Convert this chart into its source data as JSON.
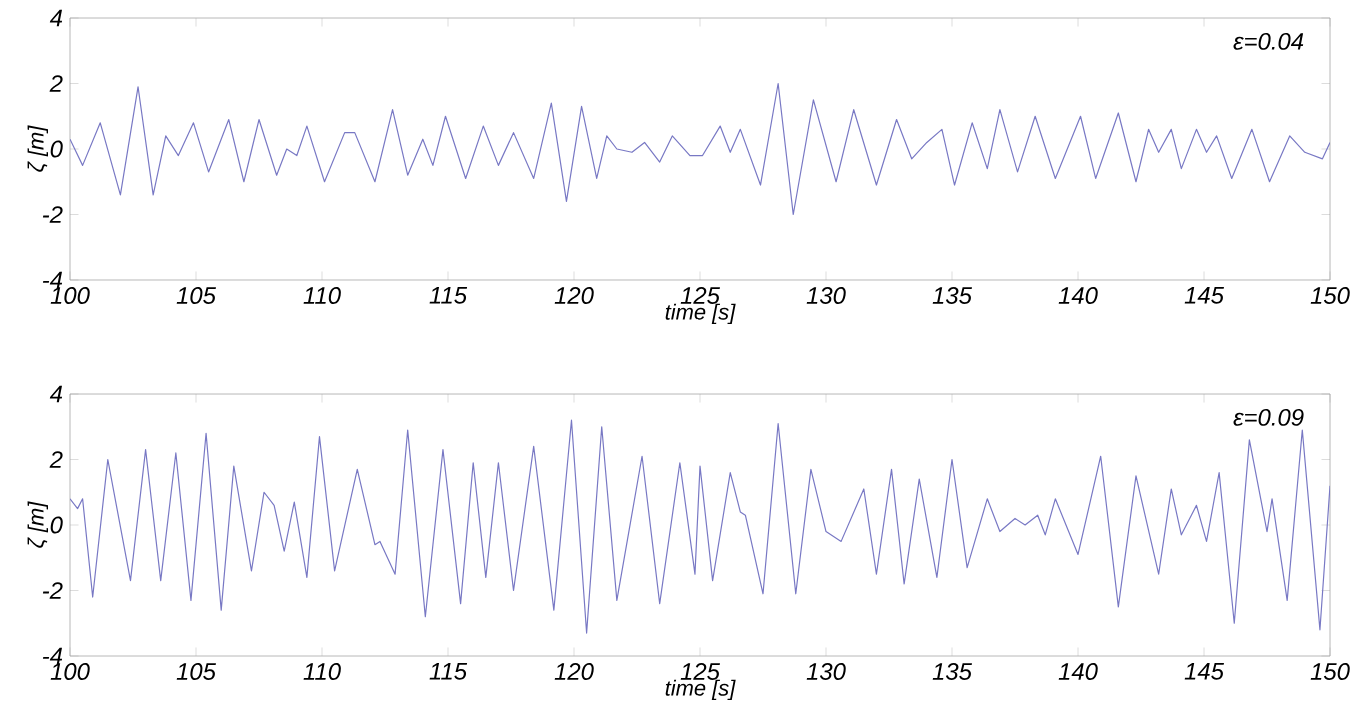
{
  "chart_data": [
    {
      "type": "line",
      "xlabel": "time [s]",
      "ylabel": "ζ [m]",
      "annotations": [
        "ε=0.04"
      ],
      "color": "#7878c4",
      "xlim": [
        100,
        150
      ],
      "ylim": [
        -4,
        4
      ],
      "xticks": [
        100,
        105,
        110,
        115,
        120,
        125,
        130,
        135,
        140,
        145,
        150
      ],
      "yticks": [
        -4,
        -2,
        0,
        2,
        4
      ],
      "x": [
        100,
        100.5,
        101.2,
        102.0,
        102.7,
        103.3,
        103.8,
        104.3,
        104.9,
        105.5,
        106.3,
        106.9,
        107.5,
        108.2,
        108.6,
        109.0,
        109.4,
        110.1,
        110.9,
        111.3,
        112.1,
        112.8,
        113.4,
        114.0,
        114.4,
        114.9,
        115.7,
        116.4,
        117.0,
        117.6,
        118.4,
        119.1,
        119.7,
        120.3,
        120.9,
        121.3,
        121.7,
        122.3,
        122.8,
        123.4,
        123.9,
        124.6,
        125.1,
        125.8,
        126.2,
        126.6,
        127.4,
        128.1,
        128.7,
        129.5,
        130.4,
        131.1,
        132.0,
        132.8,
        133.4,
        134.0,
        134.6,
        135.1,
        135.8,
        136.4,
        136.9,
        137.6,
        138.3,
        139.1,
        140.1,
        140.7,
        141.6,
        142.3,
        142.8,
        143.2,
        143.7,
        144.1,
        144.7,
        145.1,
        145.5,
        146.1,
        146.9,
        147.6,
        148.4,
        149.0,
        149.7,
        150
      ],
      "values": [
        0.3,
        -0.5,
        0.8,
        -1.4,
        1.9,
        -1.4,
        0.4,
        -0.2,
        0.8,
        -0.7,
        0.9,
        -1.0,
        0.9,
        -0.8,
        0.0,
        -0.2,
        0.7,
        -1.0,
        0.5,
        0.5,
        -1.0,
        1.2,
        -0.8,
        0.3,
        -0.5,
        1.0,
        -0.9,
        0.7,
        -0.5,
        0.5,
        -0.9,
        1.4,
        -1.6,
        1.3,
        -0.9,
        0.4,
        0.0,
        -0.1,
        0.2,
        -0.4,
        0.4,
        -0.2,
        -0.2,
        0.7,
        -0.1,
        0.6,
        -1.1,
        2.0,
        -2.0,
        1.5,
        -1.0,
        1.2,
        -1.1,
        0.9,
        -0.3,
        0.2,
        0.6,
        -1.1,
        0.8,
        -0.6,
        1.2,
        -0.7,
        1.0,
        -0.9,
        1.0,
        -0.9,
        1.1,
        -1.0,
        0.6,
        -0.1,
        0.6,
        -0.6,
        0.6,
        -0.1,
        0.4,
        -0.9,
        0.6,
        -1.0,
        0.4,
        -0.1,
        -0.3,
        0.2
      ]
    },
    {
      "type": "line",
      "xlabel": "time [s]",
      "ylabel": "ζ [m]",
      "annotations": [
        "ε=0.09"
      ],
      "color": "#7878c4",
      "xlim": [
        100,
        150
      ],
      "ylim": [
        -4,
        4
      ],
      "xticks": [
        100,
        105,
        110,
        115,
        120,
        125,
        130,
        135,
        140,
        145,
        150
      ],
      "yticks": [
        -4,
        -2,
        0,
        2,
        4
      ],
      "x": [
        100,
        100.3,
        100.5,
        100.9,
        101.5,
        102.4,
        103.0,
        103.6,
        104.2,
        104.8,
        105.4,
        106.0,
        106.5,
        107.2,
        107.7,
        108.1,
        108.5,
        108.9,
        109.4,
        109.9,
        110.5,
        111.4,
        112.1,
        112.3,
        112.9,
        113.4,
        114.1,
        114.8,
        115.5,
        116.0,
        116.5,
        117.0,
        117.6,
        118.4,
        119.2,
        119.9,
        120.5,
        121.1,
        121.7,
        122.7,
        123.4,
        124.2,
        124.8,
        125.0,
        125.5,
        126.2,
        126.6,
        126.8,
        127.5,
        128.1,
        128.8,
        129.4,
        130.0,
        130.6,
        131.5,
        132.0,
        132.6,
        133.1,
        133.7,
        134.4,
        135.0,
        135.6,
        136.4,
        136.9,
        137.5,
        137.9,
        138.4,
        138.7,
        139.1,
        140.0,
        140.9,
        141.6,
        142.3,
        143.2,
        143.7,
        144.1,
        144.7,
        145.1,
        145.6,
        146.2,
        146.8,
        147.5,
        147.7,
        148.3,
        148.9,
        149.6,
        150.0
      ],
      "values": [
        0.8,
        0.5,
        0.8,
        -2.2,
        2.0,
        -1.7,
        2.3,
        -1.7,
        2.2,
        -2.3,
        2.8,
        -2.6,
        1.8,
        -1.4,
        1.0,
        0.6,
        -0.8,
        0.7,
        -1.6,
        2.7,
        -1.4,
        1.7,
        -0.6,
        -0.5,
        -1.5,
        2.9,
        -2.8,
        2.3,
        -2.4,
        1.9,
        -1.6,
        1.9,
        -2.0,
        2.4,
        -2.6,
        3.2,
        -3.3,
        3.0,
        -2.3,
        2.1,
        -2.4,
        1.9,
        -1.5,
        1.8,
        -1.7,
        1.6,
        0.4,
        0.3,
        -2.1,
        3.1,
        -2.1,
        1.7,
        -0.2,
        -0.5,
        1.1,
        -1.5,
        1.7,
        -1.8,
        1.4,
        -1.6,
        2.0,
        -1.3,
        0.8,
        -0.2,
        0.2,
        0.0,
        0.3,
        -0.3,
        0.8,
        -0.9,
        2.1,
        -2.5,
        1.5,
        -1.5,
        1.1,
        -0.3,
        0.6,
        -0.5,
        1.6,
        -3.0,
        2.6,
        -0.2,
        0.8,
        -2.3,
        2.9,
        -3.2,
        1.2
      ]
    }
  ]
}
